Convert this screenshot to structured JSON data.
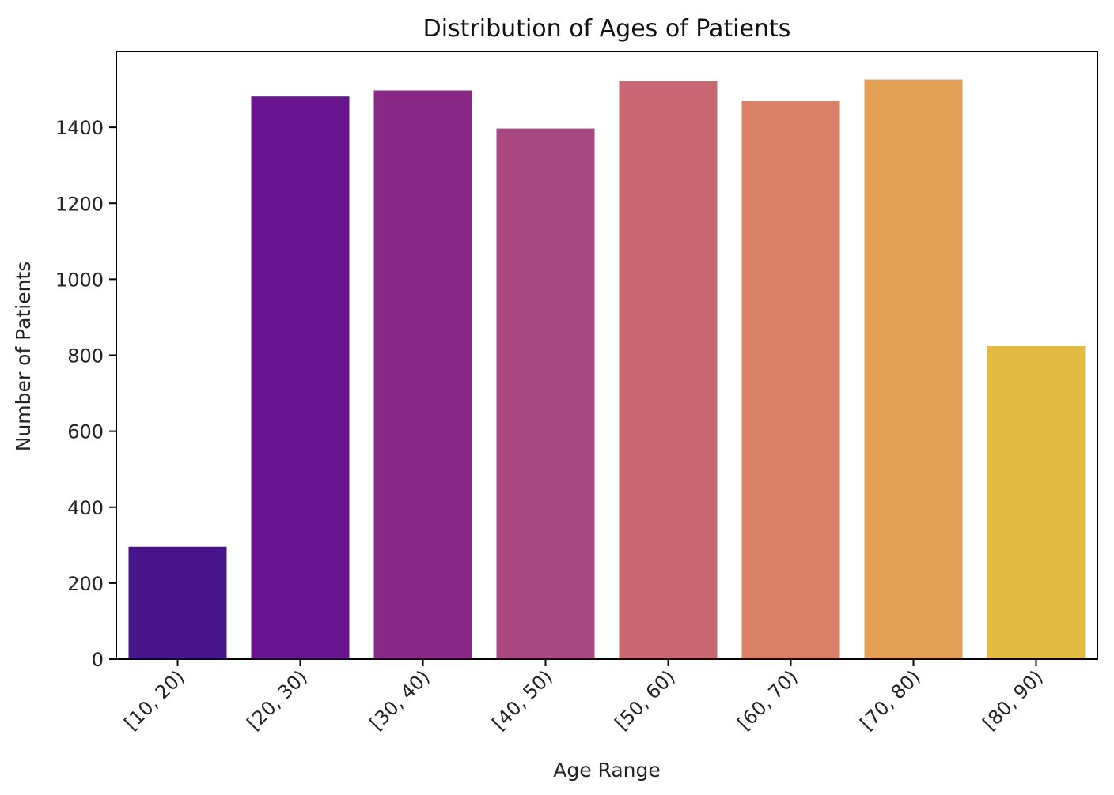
{
  "chart_data": {
    "type": "bar",
    "title": "Distribution of Ages of Patients",
    "xlabel": "Age Range",
    "ylabel": "Number of Patients",
    "categories": [
      "[10, 20)",
      "[20, 30)",
      "[30, 40)",
      "[40, 50)",
      "[50, 60)",
      "[60, 70)",
      "[70, 80)",
      "[80, 90)"
    ],
    "values": [
      296,
      1481,
      1497,
      1397,
      1522,
      1469,
      1526,
      824
    ],
    "colors": [
      "#47158a",
      "#68148e",
      "#8a2887",
      "#a94783",
      "#c86672",
      "#d98168",
      "#e39f55",
      "#e2bb42"
    ],
    "ylim": [
      0,
      1600
    ],
    "yticks": [
      0,
      200,
      400,
      600,
      800,
      1000,
      1200,
      1400
    ],
    "grid": false,
    "legend": null
  }
}
